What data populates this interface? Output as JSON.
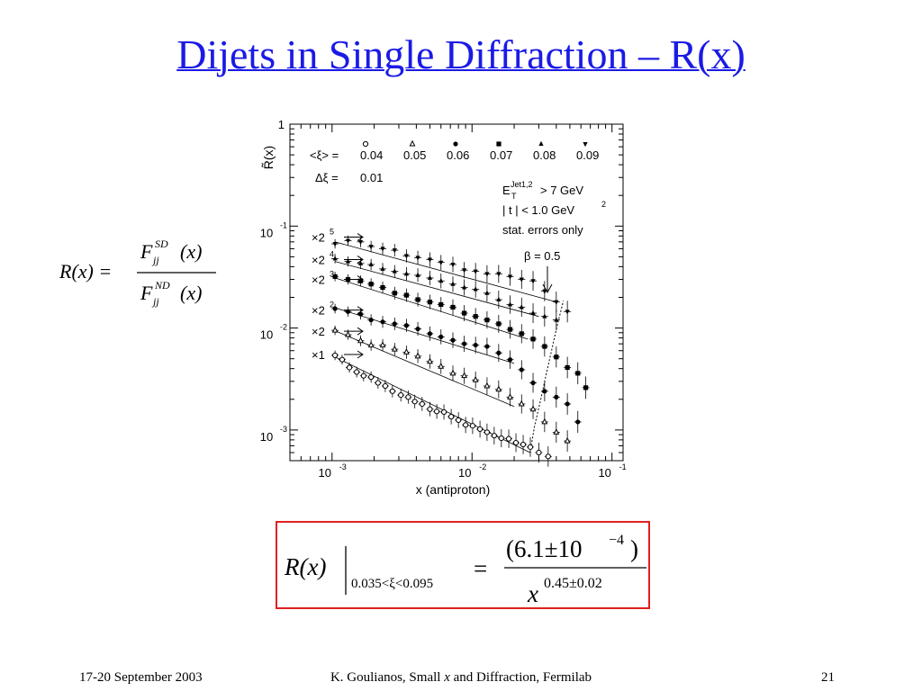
{
  "slide": {
    "title": "Dijets in Single Diffraction – R(x)",
    "accent_color": "#1a1ae6",
    "box_color": "#e02020"
  },
  "definition": {
    "lhs": "R(x) =",
    "numerator": {
      "symbol": "F",
      "sup": "SD",
      "sub": "jj",
      "arg": "(x)"
    },
    "denominator": {
      "symbol": "F",
      "sup": "ND",
      "sub": "jj",
      "arg": "(x)"
    }
  },
  "fit_formula": {
    "lhs": "R(x)",
    "range": "0.035<ξ<0.095",
    "equals": "=",
    "numerator": "(6.1±10",
    "num_exp": "−4",
    "num_close": ")",
    "base": "x",
    "exponent": "0.45±0.02"
  },
  "footer": {
    "date": "17-20 September 2003",
    "credit_prefix": "K. Goulianos, Small ",
    "credit_var": "x",
    "credit_suffix": " and Diffraction, Fermilab",
    "page": "21"
  },
  "chart_data": {
    "type": "scatter",
    "xlabel": "x (antiproton)",
    "ylabel": "R̃(x)",
    "x_scale": "log",
    "y_scale": "log",
    "xlim": [
      0.0005,
      0.12
    ],
    "ylim": [
      0.0005,
      1.0
    ],
    "x_ticks": [
      {
        "value": 0.001,
        "base": "10",
        "exp": "-3"
      },
      {
        "value": 0.01,
        "base": "10",
        "exp": "-2"
      },
      {
        "value": 0.1,
        "base": "10",
        "exp": "-1"
      }
    ],
    "y_ticks": [
      {
        "value": 1,
        "label": "1"
      },
      {
        "value": 0.1,
        "base": "10",
        "exp": "-1"
      },
      {
        "value": 0.01,
        "base": "10",
        "exp": "-2"
      },
      {
        "value": 0.001,
        "base": "10",
        "exp": "-3"
      }
    ],
    "grid": false,
    "legend": {
      "xi_label": "<ξ> =",
      "xi_values": [
        "0.04",
        "0.05",
        "0.06",
        "0.07",
        "0.08",
        "0.09"
      ],
      "dxi_label": "Δξ  =",
      "dxi_value": "0.01"
    },
    "annotations": {
      "cut_et": "E",
      "cut_et_sup": "Jet1,2",
      "cut_et_sub": "T",
      "cut_et_rest": "> 7 GeV",
      "cut_t": "| t | < 1.0 GeV",
      "cut_t_sup": "2",
      "errors": "stat. errors only",
      "beta": "β = 0.5"
    },
    "series": [
      {
        "name": "0.04",
        "marker": "open-circle",
        "scale_label": "×1",
        "scale_base": "",
        "scale_exp": "",
        "label_y": 0.0055,
        "x": [
          0.00105,
          0.00118,
          0.00133,
          0.0015,
          0.00168,
          0.0019,
          0.00213,
          0.0024,
          0.0027,
          0.0031,
          0.0035,
          0.0039,
          0.0044,
          0.005,
          0.0056,
          0.0063,
          0.0071,
          0.008,
          0.009,
          0.0101,
          0.0114,
          0.0128,
          0.0144,
          0.0162,
          0.0183,
          0.0206,
          0.0232,
          0.0261,
          0.03,
          0.035
        ],
        "y": [
          0.0054,
          0.0049,
          0.0041,
          0.0037,
          0.0034,
          0.0033,
          0.0029,
          0.0027,
          0.0024,
          0.0022,
          0.0021,
          0.0019,
          0.0018,
          0.0016,
          0.00152,
          0.0015,
          0.00135,
          0.00125,
          0.00112,
          0.0011,
          0.00102,
          0.00095,
          0.00088,
          0.00083,
          0.00082,
          0.00075,
          0.00072,
          0.00068,
          0.0006,
          0.00055
        ]
      },
      {
        "name": "0.05",
        "marker": "open-triangle",
        "scale_label": "×2",
        "scale_base": "",
        "scale_exp": "",
        "label_y": 0.0093,
        "x": [
          0.00105,
          0.0013,
          0.0016,
          0.0019,
          0.0023,
          0.0028,
          0.0034,
          0.0041,
          0.005,
          0.006,
          0.0073,
          0.0088,
          0.0106,
          0.0128,
          0.0155,
          0.0187,
          0.0226,
          0.0273,
          0.033,
          0.04,
          0.048
        ],
        "y": [
          0.0095,
          0.0086,
          0.0075,
          0.0068,
          0.0068,
          0.0062,
          0.0058,
          0.0053,
          0.0047,
          0.0042,
          0.0036,
          0.0034,
          0.0031,
          0.0027,
          0.0025,
          0.0021,
          0.0018,
          0.0016,
          0.0012,
          0.00095,
          0.00078
        ]
      },
      {
        "name": "0.06",
        "marker": "filled-circle",
        "scale_label": "×2",
        "scale_base": "×2",
        "scale_exp": "2",
        "label_y": 0.015,
        "x": [
          0.00105,
          0.0013,
          0.0016,
          0.0019,
          0.0023,
          0.0028,
          0.0034,
          0.0041,
          0.005,
          0.006,
          0.0073,
          0.0088,
          0.0106,
          0.0128,
          0.0155,
          0.0187,
          0.0226,
          0.0273,
          0.033,
          0.04,
          0.048,
          0.057
        ],
        "y": [
          0.0155,
          0.0145,
          0.0137,
          0.012,
          0.0115,
          0.011,
          0.0106,
          0.0098,
          0.0088,
          0.0082,
          0.0076,
          0.007,
          0.0068,
          0.0066,
          0.0057,
          0.0049,
          0.0039,
          0.0029,
          0.0024,
          0.0021,
          0.0018,
          0.0012
        ]
      },
      {
        "name": "0.07",
        "marker": "filled-square",
        "scale_label": "×2",
        "scale_base": "×2",
        "scale_exp": "3",
        "label_y": 0.03,
        "x": [
          0.00105,
          0.0013,
          0.0016,
          0.0019,
          0.0023,
          0.0028,
          0.0034,
          0.0041,
          0.005,
          0.006,
          0.0073,
          0.0088,
          0.0106,
          0.0128,
          0.0155,
          0.0187,
          0.0226,
          0.0273,
          0.033,
          0.04,
          0.048,
          0.057,
          0.065
        ],
        "y": [
          0.032,
          0.03,
          0.029,
          0.027,
          0.025,
          0.022,
          0.021,
          0.019,
          0.018,
          0.017,
          0.016,
          0.014,
          0.013,
          0.012,
          0.011,
          0.0097,
          0.0088,
          0.0078,
          0.0066,
          0.0052,
          0.0041,
          0.0036,
          0.0026
        ]
      },
      {
        "name": "0.08",
        "marker": "filled-triangle",
        "scale_label": "×2",
        "scale_base": "×2",
        "scale_exp": "4",
        "label_y": 0.047,
        "x": [
          0.00105,
          0.0013,
          0.0016,
          0.0019,
          0.0023,
          0.0028,
          0.0034,
          0.0041,
          0.005,
          0.006,
          0.0073,
          0.0088,
          0.0106,
          0.0128,
          0.0155,
          0.0187,
          0.0226,
          0.0273,
          0.033,
          0.04
        ],
        "y": [
          0.048,
          0.045,
          0.043,
          0.042,
          0.038,
          0.036,
          0.034,
          0.033,
          0.031,
          0.029,
          0.027,
          0.025,
          0.024,
          0.022,
          0.019,
          0.017,
          0.016,
          0.014,
          0.013,
          0.012
        ]
      },
      {
        "name": "0.09",
        "marker": "filled-down-triangle",
        "scale_label": "×2",
        "scale_base": "×2",
        "scale_exp": "5",
        "label_y": 0.078,
        "x": [
          0.00105,
          0.0013,
          0.0016,
          0.0019,
          0.0023,
          0.0028,
          0.0034,
          0.0041,
          0.005,
          0.006,
          0.0073,
          0.0088,
          0.0106,
          0.0128,
          0.0155,
          0.0187,
          0.0226,
          0.0273,
          0.033,
          0.04,
          0.048
        ],
        "y": [
          0.067,
          0.072,
          0.07,
          0.063,
          0.06,
          0.058,
          0.051,
          0.049,
          0.047,
          0.044,
          0.042,
          0.037,
          0.036,
          0.034,
          0.034,
          0.032,
          0.03,
          0.029,
          0.023,
          0.018,
          0.0145
        ]
      }
    ],
    "fits": [
      {
        "x": [
          0.00105,
          0.026
        ],
        "y": [
          0.0052,
          0.0006
        ]
      },
      {
        "x": [
          0.00105,
          0.02
        ],
        "y": [
          0.0094,
          0.0017
        ]
      },
      {
        "x": [
          0.00105,
          0.02
        ],
        "y": [
          0.0158,
          0.0045
        ]
      },
      {
        "x": [
          0.00105,
          0.025
        ],
        "y": [
          0.031,
          0.0078
        ]
      },
      {
        "x": [
          0.00105,
          0.03
        ],
        "y": [
          0.045,
          0.013
        ]
      },
      {
        "x": [
          0.00105,
          0.04
        ],
        "y": [
          0.07,
          0.018
        ]
      }
    ],
    "beta_curve": {
      "x": [
        0.026,
        0.028,
        0.031,
        0.034,
        0.037,
        0.04,
        0.043,
        0.045
      ],
      "y": [
        0.0006,
        0.0011,
        0.002,
        0.0036,
        0.006,
        0.0097,
        0.0145,
        0.0185
      ]
    }
  }
}
